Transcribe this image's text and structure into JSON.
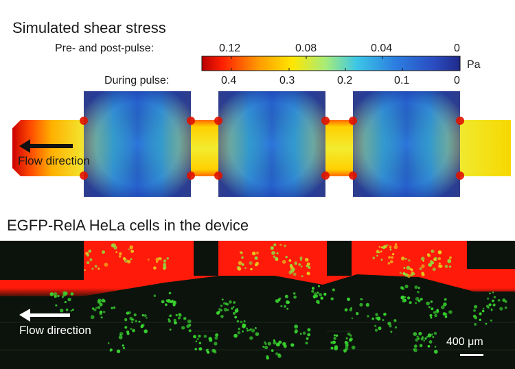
{
  "panel_top": {
    "title": "Simulated shear stress",
    "pre_post_label": "Pre- and post-pulse:",
    "pre_post_ticks": [
      "0.12",
      "0.08",
      "0.04",
      "0"
    ],
    "during_label": "During pulse:",
    "during_ticks": [
      "0.4",
      "0.3",
      "0.2",
      "0.1",
      "0"
    ],
    "unit": "Pa",
    "flow_label": "Flow direction"
  },
  "panel_bottom": {
    "title": "EGFP-RelA HeLa cells in the device",
    "flow_label": "Flow direction",
    "scale_bar_label": "400 μm"
  },
  "colors": {
    "colormap": [
      "#b80000",
      "#ff3a00",
      "#ffd400",
      "#d8f040",
      "#7fe0b0",
      "#28b8f0",
      "#2a6ad8",
      "#232a90"
    ],
    "chamber_blue": "#2c6fd6",
    "chamber_edge": "#1b3aa8",
    "fluor_red": "#ff1a0a",
    "cell_green": "#3ad830",
    "background_dark": "#0c130c"
  }
}
